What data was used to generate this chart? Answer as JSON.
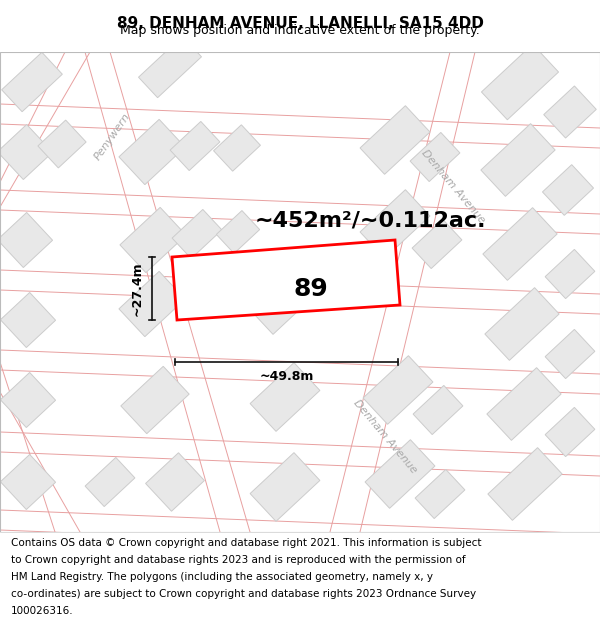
{
  "title": "89, DENHAM AVENUE, LLANELLI, SA15 4DD",
  "subtitle": "Map shows position and indicative extent of the property.",
  "title_fontsize": 11,
  "subtitle_fontsize": 9,
  "footer_text": "Contains OS data © Crown copyright and database right 2021. This information is subject to Crown copyright and database rights 2023 and is reproduced with the permission of HM Land Registry. The polygons (including the associated geometry, namely x, y co-ordinates) are subject to Crown copyright and database rights 2023 Ordnance Survey 100026316.",
  "footer_fontsize": 7.5,
  "map_bg": "#ffffff",
  "footer_bg": "#ffffff",
  "header_bg": "#ffffff",
  "road_outline_color": "#e8a0a0",
  "block_fill": "#e8e8e8",
  "block_edge": "#cccccc",
  "highlight_fill": "#ffffff",
  "highlight_edge": "#ff0000",
  "highlight_lw": 2.0,
  "dim_line_color": "#111111",
  "area_text": "~452m²/~0.112ac.",
  "area_fontsize": 16,
  "label_89": "89",
  "label_89_fontsize": 18,
  "dim_width_text": "~49.8m",
  "dim_height_text": "~27.4m",
  "dim_fontsize": 9,
  "street_label_denham_upper": "Denham Avenue",
  "street_label_denham_lower": "Denham Avenue",
  "street_label_peny": "Penywern",
  "street_fontsize": 8,
  "street_color": "#aaaaaa"
}
